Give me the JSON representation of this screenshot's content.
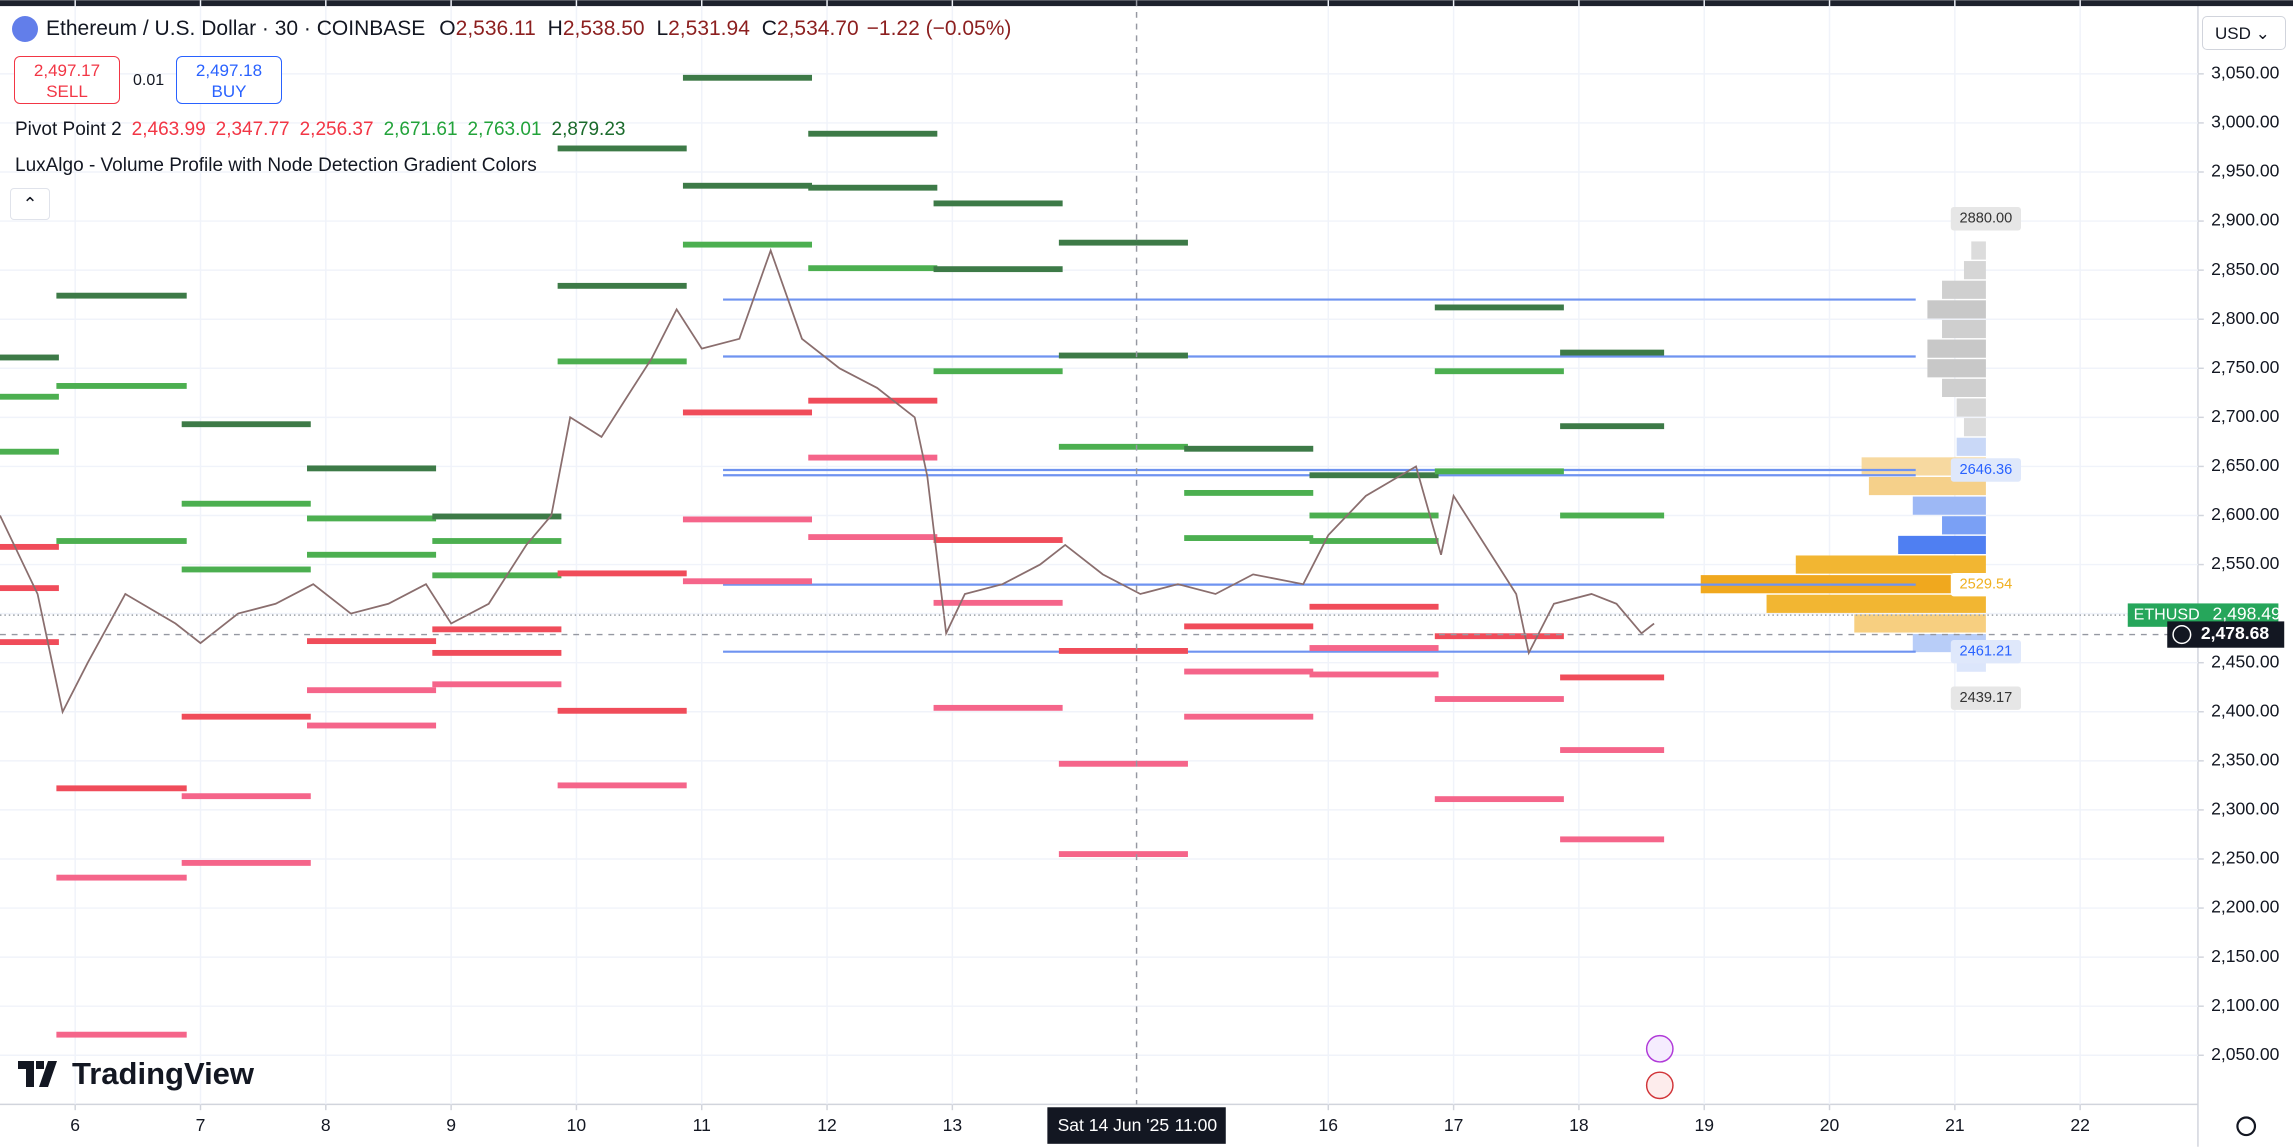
{
  "header": {
    "symbol": "Ethereum / U.S. Dollar · 30 · COINBASE",
    "ohlc": [
      {
        "label": "O",
        "value": "2,536.11"
      },
      {
        "label": "H",
        "value": "2,538.50"
      },
      {
        "label": "L",
        "value": "2,531.94"
      },
      {
        "label": "C",
        "value": "2,534.70"
      }
    ],
    "change": "−1.22 (−0.05%)",
    "sell_price": "2,497.17",
    "sell": "SELL",
    "spread": "0.01",
    "buy_price": "2,497.18",
    "buy": "BUY",
    "currency": "USD"
  },
  "indicators": {
    "pivot_name": "Pivot Point 2",
    "pivot_values": [
      "2,463.99",
      "2,347.77",
      "2,256.37",
      "2,671.61",
      "2,763.01",
      "2,879.23"
    ],
    "pivot_colors": [
      "#f23645",
      "#f23645",
      "#f23645",
      "#22a33a",
      "#22a33a",
      "#1b6b2c"
    ],
    "luxalgo": "LuxAlgo - Volume Profile with Node Detection Gradient Colors"
  },
  "brand": "TradingView",
  "crosshair": {
    "date": "Sat 14 Jun '25",
    "time": "11:00",
    "x": 14.47,
    "price": {
      "value": 2478.68,
      "label": "2,478.68"
    }
  },
  "chart_data": {
    "type": "line",
    "color": "#8a6e6e",
    "x": [
      5.4,
      5.7,
      5.9,
      6.1,
      6.4,
      6.8,
      7.0,
      7.3,
      7.6,
      7.9,
      8.2,
      8.5,
      8.8,
      9.0,
      9.3,
      9.6,
      9.8,
      9.95,
      10.2,
      10.4,
      10.6,
      10.8,
      11.0,
      11.3,
      11.55,
      11.8,
      12.1,
      12.4,
      12.7,
      12.8,
      12.95,
      13.1,
      13.4,
      13.7,
      13.9,
      14.2,
      14.5,
      14.8,
      15.1,
      15.4,
      15.8,
      16.0,
      16.3,
      16.7,
      16.9,
      17.0,
      17.3,
      17.5,
      17.6,
      17.8,
      18.1,
      18.3,
      18.5,
      18.6
    ],
    "values": [
      2600,
      2520,
      2400,
      2450,
      2520,
      2490,
      2470,
      2500,
      2510,
      2530,
      2500,
      2510,
      2530,
      2490,
      2510,
      2570,
      2600,
      2700,
      2680,
      2720,
      2760,
      2810,
      2770,
      2780,
      2870,
      2780,
      2750,
      2730,
      2700,
      2640,
      2480,
      2520,
      2530,
      2550,
      2570,
      2540,
      2520,
      2530,
      2520,
      2540,
      2530,
      2580,
      2620,
      2650,
      2560,
      2620,
      2560,
      2520,
      2460,
      2510,
      2520,
      2510,
      2480,
      2490
    ],
    "xlim": [
      5.4,
      22.94
    ],
    "ylim": [
      2000,
      3125
    ],
    "xticks": [
      6,
      7,
      8,
      9,
      10,
      11,
      12,
      13,
      16,
      17,
      18,
      19,
      20,
      21,
      22
    ],
    "yticks": [
      {
        "value": 2050,
        "label": "2,050.00"
      },
      {
        "value": 2100,
        "label": "2,100.00"
      },
      {
        "value": 2150,
        "label": "2,150.00"
      },
      {
        "value": 2200,
        "label": "2,200.00"
      },
      {
        "value": 2250,
        "label": "2,250.00"
      },
      {
        "value": 2300,
        "label": "2,300.00"
      },
      {
        "value": 2350,
        "label": "2,350.00"
      },
      {
        "value": 2400,
        "label": "2,400.00"
      },
      {
        "value": 2450,
        "label": "2,450.00"
      },
      {
        "value": 2500,
        "label": "2,500.00"
      },
      {
        "value": 2550,
        "label": "2,550.00"
      },
      {
        "value": 2600,
        "label": "2,600.00"
      },
      {
        "value": 2650,
        "label": "2,650.00"
      },
      {
        "value": 2700,
        "label": "2,700.00"
      },
      {
        "value": 2750,
        "label": "2,750.00"
      },
      {
        "value": 2800,
        "label": "2,800.00"
      },
      {
        "value": 2850,
        "label": "2,850.00"
      },
      {
        "value": 2900,
        "label": "2,900.00"
      },
      {
        "value": 2950,
        "label": "2,950.00"
      },
      {
        "value": 3000,
        "label": "3,000.00"
      },
      {
        "value": 3050,
        "label": "3,050.00"
      }
    ],
    "grid": true,
    "level_colors": {
      "dark": "#3d7a47",
      "green": "#4caf50",
      "red": "#f04c5a",
      "pink": "#f5658a"
    },
    "pivots": [
      {
        "start": 5.4,
        "end": 5.87,
        "dark": [
          2761
        ],
        "green": [
          2721,
          2665
        ],
        "red": [
          2568,
          2526,
          2471
        ],
        "pink": []
      },
      {
        "start": 5.85,
        "end": 6.89,
        "dark": [
          2824
        ],
        "green": [
          2732,
          2574
        ],
        "red": [
          2322
        ],
        "pink": [
          2231,
          2071
        ]
      },
      {
        "start": 6.85,
        "end": 7.88,
        "dark": [
          2693
        ],
        "green": [
          2612,
          2545
        ],
        "red": [
          2395
        ],
        "pink": [
          2314,
          2246
        ]
      },
      {
        "start": 7.85,
        "end": 8.88,
        "dark": [
          2648
        ],
        "green": [
          2597,
          2560
        ],
        "red": [
          2472
        ],
        "pink": [
          2422,
          2386
        ]
      },
      {
        "start": 8.85,
        "end": 9.88,
        "dark": [
          2599
        ],
        "green": [
          2574,
          2539
        ],
        "red": [
          2484,
          2460
        ],
        "pink": [
          2428
        ]
      },
      {
        "start": 9.85,
        "end": 10.88,
        "dark": [
          2974,
          2834
        ],
        "green": [
          2757
        ],
        "red": [
          2541,
          2401
        ],
        "pink": [
          2325
        ]
      },
      {
        "start": 10.85,
        "end": 11.88,
        "dark": [
          3046,
          2936
        ],
        "green": [
          2876
        ],
        "red": [
          2705
        ],
        "pink": [
          2596,
          2533
        ]
      },
      {
        "start": 11.85,
        "end": 12.88,
        "dark": [
          2989,
          2934
        ],
        "green": [
          2852
        ],
        "red": [
          2717
        ],
        "pink": [
          2659,
          2578
        ]
      },
      {
        "start": 12.85,
        "end": 13.88,
        "dark": [
          2918,
          2851
        ],
        "green": [
          2747
        ],
        "red": [
          2575
        ],
        "pink": [
          2511,
          2404
        ]
      },
      {
        "start": 13.85,
        "end": 14.88,
        "dark": [
          2878,
          2763
        ],
        "green": [
          2670
        ],
        "red": [
          2462
        ],
        "pink": [
          2347,
          2255
        ]
      },
      {
        "start": 14.85,
        "end": 15.88,
        "dark": [
          2668
        ],
        "green": [
          2623,
          2577
        ],
        "red": [
          2487
        ],
        "pink": [
          2441,
          2395
        ]
      },
      {
        "start": 15.85,
        "end": 16.88,
        "dark": [
          2641
        ],
        "green": [
          2600,
          2574
        ],
        "red": [
          2507
        ],
        "pink": [
          2465,
          2438
        ]
      },
      {
        "start": 16.85,
        "end": 17.88,
        "dark": [
          2812
        ],
        "green": [
          2747,
          2645
        ],
        "red": [
          2477
        ],
        "pink": [
          2413,
          2311
        ]
      },
      {
        "start": 17.85,
        "end": 18.68,
        "dark": [
          2766,
          2691
        ],
        "green": [
          2600
        ],
        "red": [
          2435
        ],
        "pink": [
          2361,
          2270
        ]
      }
    ],
    "profile_lines": {
      "start": 11.17,
      "color": "#6f93f0",
      "values": [
        2820,
        2762,
        2646.36,
        2641,
        2529.54,
        2461.21
      ]
    },
    "profile": {
      "prices": [
        2870,
        2850,
        2830,
        2810,
        2790,
        2770,
        2750,
        2730,
        2710,
        2690,
        2670,
        2650,
        2630,
        2610,
        2590,
        2570,
        2550,
        2530,
        2510,
        2490,
        2470,
        2450
      ],
      "volumes": [
        10,
        15,
        30,
        40,
        30,
        40,
        40,
        30,
        20,
        15,
        20,
        85,
        80,
        50,
        30,
        60,
        130,
        195,
        150,
        90,
        50,
        20
      ],
      "colors": [
        "#dcdcdc",
        "#d6d6d6",
        "#cfcfcf",
        "#c8c8c8",
        "#cfcfcf",
        "#c8c8c8",
        "#c8c8c8",
        "#cfcfcf",
        "#d6d6d6",
        "#dcdcdc",
        "#c9d8f7",
        "#f7d9a0",
        "#f5d08a",
        "#9db8f5",
        "#7aa0f5",
        "#4f7ff2",
        "#f2b632",
        "#f0a81e",
        "#f2b632",
        "#f7cf80",
        "#b8cdf8",
        "#dce6fb"
      ]
    },
    "profile_labels": [
      {
        "value": 2880,
        "label": "2880.00",
        "bg": "#e6e6e6",
        "fg": "#333333"
      },
      {
        "value": 2646.36,
        "label": "2646.36",
        "bg": "#dfe8fb",
        "fg": "#2962ff"
      },
      {
        "value": 2529.54,
        "label": "2529.54",
        "bg": "#ffffff",
        "fg": "#f0b020"
      },
      {
        "value": 2461.21,
        "label": "2461.21",
        "bg": "#dfe8fb",
        "fg": "#2962ff"
      },
      {
        "value": 2439.17,
        "label": "2439.17",
        "bg": "#e6e6e6",
        "fg": "#333333"
      }
    ],
    "last_price": {
      "name": "ETHUSD",
      "value": 2498.49,
      "label": "2,498.49",
      "color": "#26a65b"
    }
  }
}
